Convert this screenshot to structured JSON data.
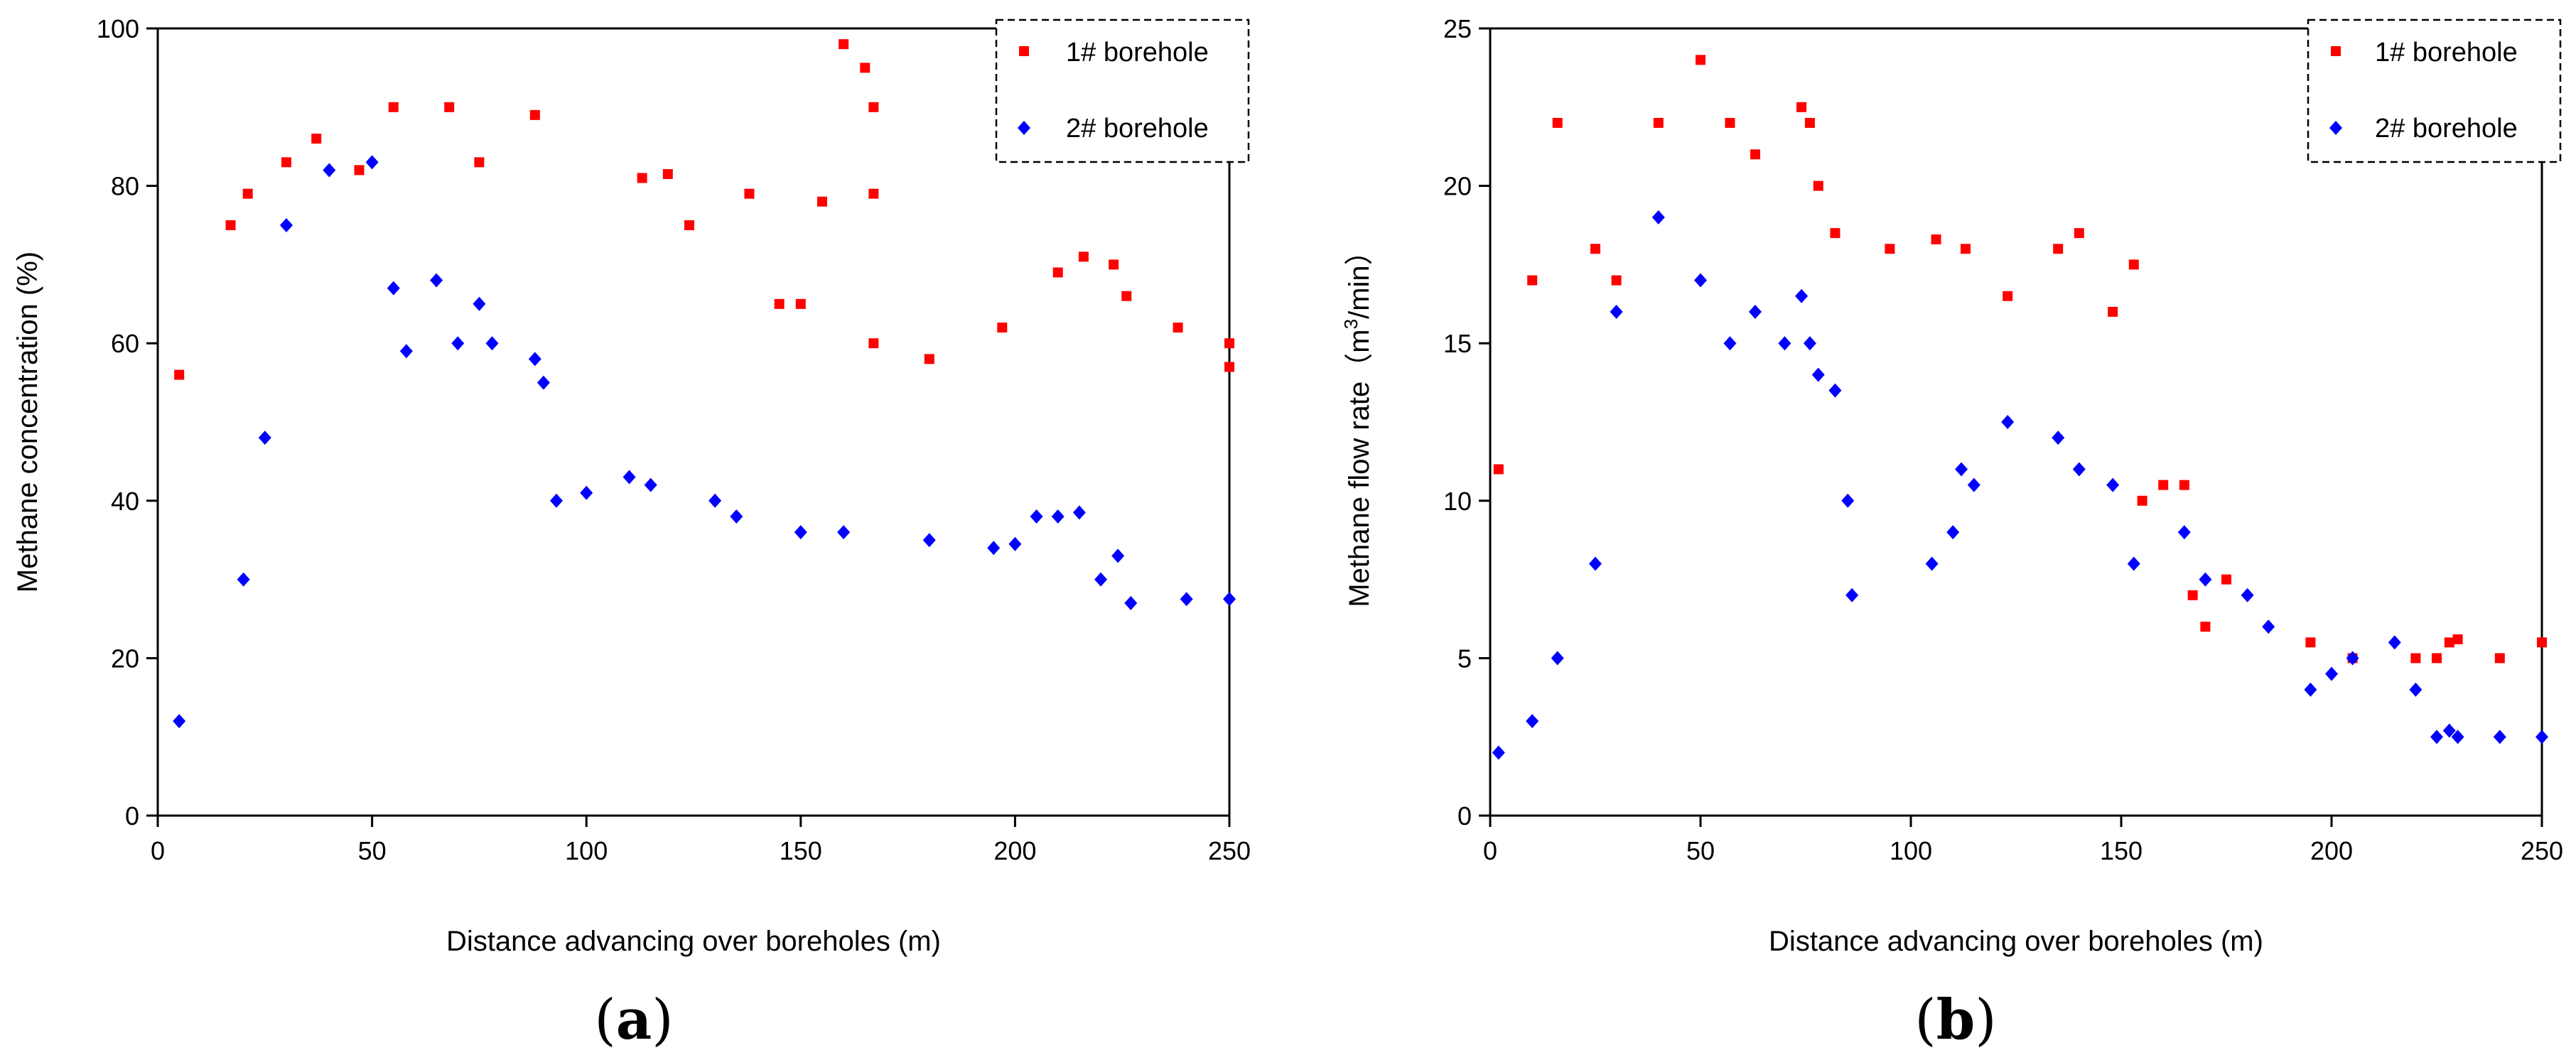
{
  "chart_data": [
    {
      "type": "scatter",
      "panel_label": "a",
      "title": "",
      "xlabel": "Distance advancing over boreholes (m)",
      "ylabel": "Methane concentration (%)",
      "xlim": [
        0,
        250
      ],
      "ylim": [
        0,
        100
      ],
      "xticks": [
        0,
        50,
        100,
        150,
        200,
        250
      ],
      "yticks": [
        0,
        20,
        40,
        60,
        80,
        100
      ],
      "legend_position": "top-right",
      "series": [
        {
          "name": "1# borehole",
          "marker": "square",
          "color": "#ff0000",
          "points": [
            [
              5,
              56
            ],
            [
              17,
              75
            ],
            [
              21,
              79
            ],
            [
              30,
              83
            ],
            [
              37,
              86
            ],
            [
              47,
              82
            ],
            [
              55,
              90
            ],
            [
              68,
              90
            ],
            [
              75,
              83
            ],
            [
              88,
              89
            ],
            [
              113,
              81
            ],
            [
              119,
              81.5
            ],
            [
              124,
              75
            ],
            [
              138,
              79
            ],
            [
              145,
              65
            ],
            [
              150,
              65
            ],
            [
              155,
              78
            ],
            [
              160,
              98
            ],
            [
              165,
              95
            ],
            [
              167,
              90
            ],
            [
              167,
              79
            ],
            [
              167,
              60
            ],
            [
              180,
              58
            ],
            [
              197,
              62
            ],
            [
              210,
              69
            ],
            [
              216,
              71
            ],
            [
              223,
              70
            ],
            [
              226,
              66
            ],
            [
              238,
              62
            ],
            [
              250,
              57
            ],
            [
              250,
              60
            ]
          ]
        },
        {
          "name": "2# borehole",
          "marker": "diamond",
          "color": "#0000ff",
          "points": [
            [
              5,
              12
            ],
            [
              20,
              30
            ],
            [
              25,
              48
            ],
            [
              30,
              75
            ],
            [
              40,
              82
            ],
            [
              50,
              83
            ],
            [
              55,
              67
            ],
            [
              58,
              59
            ],
            [
              65,
              68
            ],
            [
              70,
              60
            ],
            [
              75,
              65
            ],
            [
              78,
              60
            ],
            [
              88,
              58
            ],
            [
              90,
              55
            ],
            [
              93,
              40
            ],
            [
              100,
              41
            ],
            [
              110,
              43
            ],
            [
              115,
              42
            ],
            [
              130,
              40
            ],
            [
              135,
              38
            ],
            [
              150,
              36
            ],
            [
              160,
              36
            ],
            [
              180,
              35
            ],
            [
              195,
              34
            ],
            [
              200,
              34.5
            ],
            [
              205,
              38
            ],
            [
              210,
              38
            ],
            [
              215,
              38.5
            ],
            [
              220,
              30
            ],
            [
              224,
              33
            ],
            [
              227,
              27
            ],
            [
              240,
              27.5
            ],
            [
              250,
              27.5
            ]
          ]
        }
      ]
    },
    {
      "type": "scatter",
      "panel_label": "b",
      "title": "",
      "xlabel": "Distance advancing over boreholes (m)",
      "ylabel_prefix": "Methane flow rate（m",
      "ylabel_sup": "3",
      "ylabel_suffix": "/min）",
      "xlim": [
        0,
        250
      ],
      "ylim": [
        0,
        25
      ],
      "xticks": [
        0,
        50,
        100,
        150,
        200,
        250
      ],
      "yticks": [
        0,
        5,
        10,
        15,
        20,
        25
      ],
      "legend_position": "top-right",
      "series": [
        {
          "name": "1# borehole",
          "marker": "square",
          "color": "#ff0000",
          "points": [
            [
              2,
              11
            ],
            [
              10,
              17
            ],
            [
              16,
              22
            ],
            [
              25,
              18
            ],
            [
              30,
              17
            ],
            [
              40,
              22
            ],
            [
              50,
              24
            ],
            [
              57,
              22
            ],
            [
              63,
              21
            ],
            [
              74,
              22.5
            ],
            [
              76,
              22
            ],
            [
              78,
              20
            ],
            [
              82,
              18.5
            ],
            [
              95,
              18
            ],
            [
              106,
              18.3
            ],
            [
              113,
              18
            ],
            [
              123,
              16.5
            ],
            [
              135,
              18
            ],
            [
              140,
              18.5
            ],
            [
              148,
              16
            ],
            [
              153,
              17.5
            ],
            [
              155,
              10
            ],
            [
              160,
              10.5
            ],
            [
              165,
              10.5
            ],
            [
              167,
              7
            ],
            [
              170,
              6
            ],
            [
              175,
              7.5
            ],
            [
              195,
              5.5
            ],
            [
              205,
              5
            ],
            [
              220,
              5
            ],
            [
              225,
              5
            ],
            [
              228,
              5.5
            ],
            [
              230,
              5.6
            ],
            [
              240,
              5
            ],
            [
              250,
              5.5
            ]
          ]
        },
        {
          "name": "2# borehole",
          "marker": "diamond",
          "color": "#0000ff",
          "points": [
            [
              2,
              2
            ],
            [
              10,
              3
            ],
            [
              16,
              5
            ],
            [
              25,
              8
            ],
            [
              30,
              16
            ],
            [
              40,
              19
            ],
            [
              50,
              17
            ],
            [
              57,
              15
            ],
            [
              63,
              16
            ],
            [
              70,
              15
            ],
            [
              74,
              16.5
            ],
            [
              76,
              15
            ],
            [
              78,
              14
            ],
            [
              82,
              13.5
            ],
            [
              85,
              10
            ],
            [
              86,
              7
            ],
            [
              105,
              8
            ],
            [
              110,
              9
            ],
            [
              112,
              11
            ],
            [
              115,
              10.5
            ],
            [
              123,
              12.5
            ],
            [
              135,
              12
            ],
            [
              140,
              11
            ],
            [
              148,
              10.5
            ],
            [
              153,
              8
            ],
            [
              165,
              9
            ],
            [
              170,
              7.5
            ],
            [
              180,
              7
            ],
            [
              185,
              6
            ],
            [
              195,
              4
            ],
            [
              200,
              4.5
            ],
            [
              205,
              5
            ],
            [
              215,
              5.5
            ],
            [
              220,
              4
            ],
            [
              225,
              2.5
            ],
            [
              228,
              2.7
            ],
            [
              230,
              2.5
            ],
            [
              240,
              2.5
            ],
            [
              250,
              2.5
            ]
          ]
        }
      ]
    }
  ]
}
